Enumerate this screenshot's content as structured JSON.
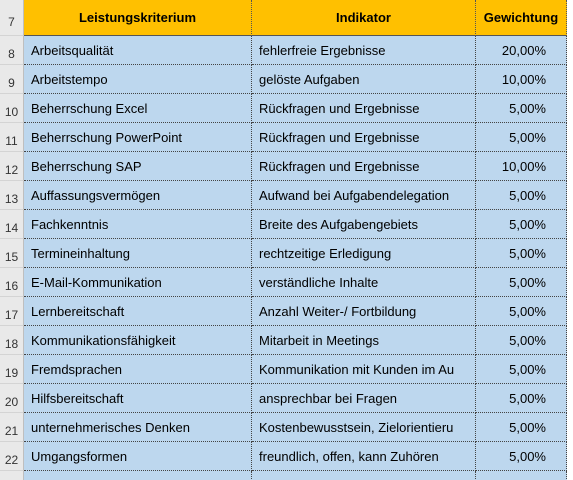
{
  "table": {
    "row_numbers": [
      "7",
      "8",
      "9",
      "10",
      "11",
      "12",
      "13",
      "14",
      "15",
      "16",
      "17",
      "18",
      "19",
      "20",
      "21",
      "22"
    ],
    "header": [
      "Leistungskriterium",
      "Indikator",
      "Gewichtung"
    ],
    "rows": [
      [
        "Arbeitsqualität",
        "fehlerfreie Ergebnisse",
        "20,00%"
      ],
      [
        "Arbeitstempo",
        "gelöste Aufgaben",
        "10,00%"
      ],
      [
        "Beherrschung Excel",
        "Rückfragen und Ergebnisse",
        "5,00%"
      ],
      [
        "Beherrschung PowerPoint",
        "Rückfragen und Ergebnisse",
        "5,00%"
      ],
      [
        "Beherrschung SAP",
        "Rückfragen und Ergebnisse",
        "10,00%"
      ],
      [
        "Auffassungsvermögen",
        "Aufwand bei Aufgabendelegation",
        "5,00%"
      ],
      [
        "Fachkenntnis",
        "Breite des Aufgabengebiets",
        "5,00%"
      ],
      [
        "Termineinhaltung",
        "rechtzeitige Erledigung",
        "5,00%"
      ],
      [
        "E-Mail-Kommunikation",
        "verständliche Inhalte",
        "5,00%"
      ],
      [
        "Lernbereitschaft",
        "Anzahl Weiter-/ Fortbildung",
        "5,00%"
      ],
      [
        "Kommunikationsfähigkeit",
        "Mitarbeit in Meetings",
        "5,00%"
      ],
      [
        "Fremdsprachen",
        "Kommunikation mit Kunden im Au",
        "5,00%"
      ],
      [
        "Hilfsbereitschaft",
        "ansprechbar bei Fragen",
        "5,00%"
      ],
      [
        "unternehmerisches Denken",
        "Kostenbewusstsein, Zielorientieru",
        "5,00%"
      ],
      [
        "Umgangsformen",
        "freundlich, offen, kann Zuhören",
        "5,00%"
      ]
    ]
  }
}
